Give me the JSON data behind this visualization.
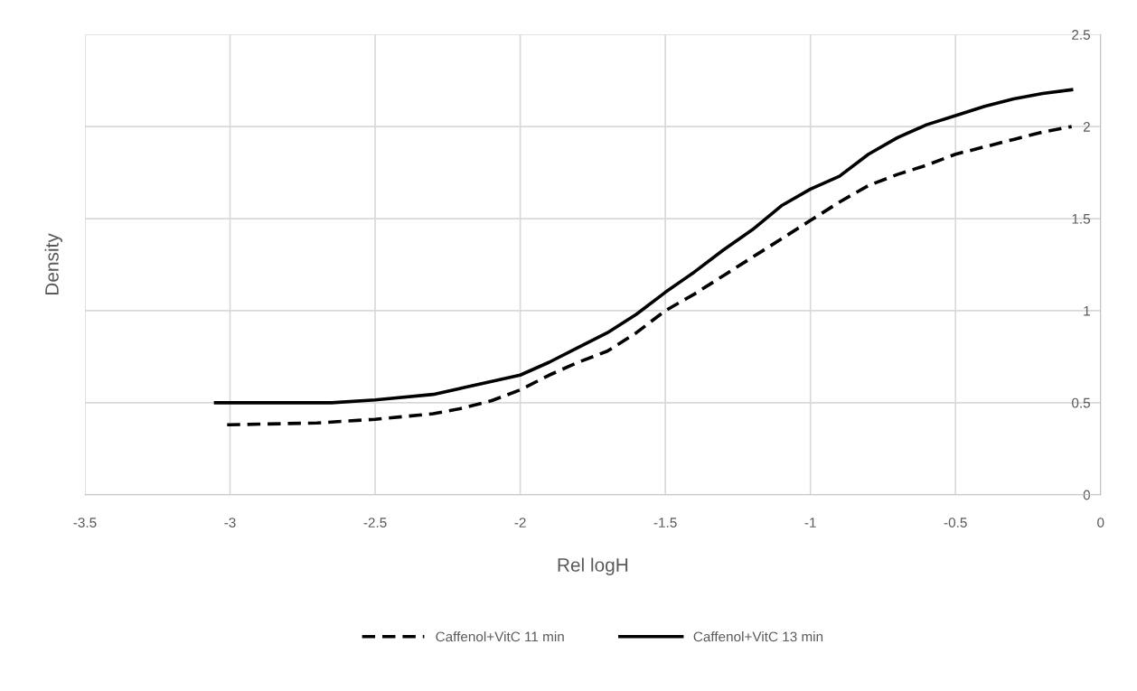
{
  "chart_data": {
    "type": "line",
    "xlabel": "Rel logH",
    "ylabel": "Density",
    "xlim": [
      -3.5,
      0
    ],
    "xticks": [
      -3.5,
      -3,
      -2.5,
      -2,
      -1.5,
      -1,
      -0.5,
      0
    ],
    "ylim": [
      0,
      2.5
    ],
    "yticks": [
      0,
      0.5,
      1,
      1.5,
      2,
      2.5
    ],
    "grid": true,
    "legend": "bottom",
    "series": [
      {
        "name": "Caffenol+VitC 11 min",
        "color": "#000000",
        "line_style": "dashed",
        "x": [
          -3.01,
          -2.7,
          -2.5,
          -2.3,
          -2.2,
          -2.1,
          -2.0,
          -1.9,
          -1.8,
          -1.7,
          -1.6,
          -1.5,
          -1.4,
          -1.3,
          -1.2,
          -1.1,
          -1.0,
          -0.9,
          -0.8,
          -0.7,
          -0.6,
          -0.5,
          -0.4,
          -0.3,
          -0.2,
          -0.1
        ],
        "values": [
          0.38,
          0.39,
          0.41,
          0.44,
          0.47,
          0.51,
          0.57,
          0.65,
          0.72,
          0.78,
          0.88,
          1.0,
          1.09,
          1.19,
          1.29,
          1.39,
          1.49,
          1.59,
          1.68,
          1.74,
          1.79,
          1.85,
          1.89,
          1.93,
          1.97,
          2.0
        ]
      },
      {
        "name": "Caffenol+VitC 13 min",
        "color": "#000000",
        "line_style": "solid",
        "x": [
          -3.05,
          -2.65,
          -2.5,
          -2.3,
          -2.2,
          -2.0,
          -1.9,
          -1.8,
          -1.7,
          -1.6,
          -1.5,
          -1.4,
          -1.3,
          -1.2,
          -1.1,
          -1.0,
          -0.9,
          -0.8,
          -0.7,
          -0.6,
          -0.5,
          -0.4,
          -0.3,
          -0.2,
          -0.1
        ],
        "values": [
          0.5,
          0.5,
          0.515,
          0.545,
          0.58,
          0.65,
          0.72,
          0.8,
          0.88,
          0.98,
          1.1,
          1.21,
          1.33,
          1.44,
          1.57,
          1.66,
          1.73,
          1.85,
          1.94,
          2.01,
          2.06,
          2.11,
          2.15,
          2.18,
          2.2
        ]
      }
    ]
  }
}
